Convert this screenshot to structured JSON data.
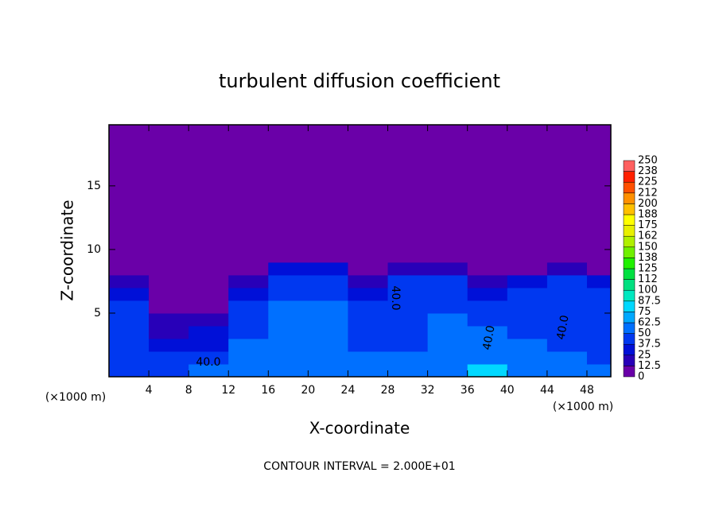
{
  "chart_data": {
    "type": "heatmap",
    "title": "turbulent diffusion coefficient",
    "x_label": "X-coordinate",
    "y_label": "Z-coordinate",
    "x_unit": "(×1000 m)",
    "y_unit": "(×1000 m)",
    "footer": "CONTOUR INTERVAL = 2.000E+01",
    "contour_labels": [
      "40.0",
      "40.0",
      "40.0",
      "40.0"
    ],
    "xlim": [
      0,
      50.4
    ],
    "ylim": [
      0,
      19.8
    ],
    "xticks": [
      4,
      8,
      12,
      16,
      20,
      24,
      28,
      32,
      36,
      40,
      44,
      48
    ],
    "yticks": [
      5,
      10,
      15
    ],
    "x_bins": [
      0,
      4,
      8,
      12,
      16,
      20,
      24,
      28,
      32,
      36,
      40,
      44,
      48,
      50.4
    ],
    "y_bins": [
      0,
      1,
      2,
      3,
      4,
      5,
      6,
      7,
      8,
      9,
      10,
      19.8
    ],
    "z": [
      [
        45,
        45,
        50,
        55,
        55,
        60,
        55,
        55,
        60,
        75,
        55,
        55,
        50
      ],
      [
        45,
        40,
        45,
        50,
        50,
        55,
        50,
        50,
        55,
        60,
        50,
        50,
        45
      ],
      [
        45,
        30,
        35,
        50,
        50,
        50,
        45,
        40,
        50,
        55,
        50,
        45,
        45
      ],
      [
        45,
        20,
        25,
        45,
        50,
        50,
        45,
        40,
        50,
        50,
        45,
        45,
        45
      ],
      [
        40,
        15,
        15,
        45,
        50,
        50,
        45,
        45,
        50,
        45,
        45,
        45,
        45
      ],
      [
        40,
        10,
        10,
        40,
        50,
        50,
        40,
        45,
        45,
        40,
        45,
        45,
        45
      ],
      [
        35,
        5,
        5,
        30,
        45,
        45,
        30,
        45,
        45,
        30,
        40,
        45,
        40
      ],
      [
        20,
        0,
        0,
        15,
        45,
        40,
        15,
        40,
        40,
        15,
        35,
        40,
        30
      ],
      [
        0,
        0,
        0,
        0,
        30,
        25,
        0,
        15,
        20,
        0,
        10,
        15,
        5
      ],
      [
        0,
        0,
        0,
        0,
        0,
        0,
        0,
        0,
        0,
        0,
        0,
        0,
        0
      ],
      [
        0,
        0,
        0,
        0,
        0,
        0,
        0,
        0,
        0,
        0,
        0,
        0,
        0
      ]
    ],
    "colorbar_ticks": [
      0,
      12.5,
      25,
      37.5,
      50,
      62.5,
      75,
      87.5,
      100,
      {
        "value": 112.5,
        "label": "112"
      },
      125,
      {
        "value": 137.5,
        "label": "138"
      },
      150,
      {
        "value": 162.5,
        "label": "162"
      },
      175,
      {
        "value": 187.5,
        "label": "188"
      },
      200,
      {
        "value": 212.5,
        "label": "212"
      },
      225,
      {
        "value": 237.5,
        "label": "238"
      },
      250
    ],
    "colors": [
      "#6a00a8",
      "#2800b8",
      "#0010d8",
      "#0038f0",
      "#0070ff",
      "#00a8ff",
      "#00d8ff",
      "#00e8c0",
      "#00e080",
      "#00e040",
      "#20f000",
      "#70f000",
      "#b0f000",
      "#e8f000",
      "#ffff00",
      "#ffc000",
      "#ff9000",
      "#ff5000",
      "#ff2000",
      "#ff6060"
    ]
  }
}
